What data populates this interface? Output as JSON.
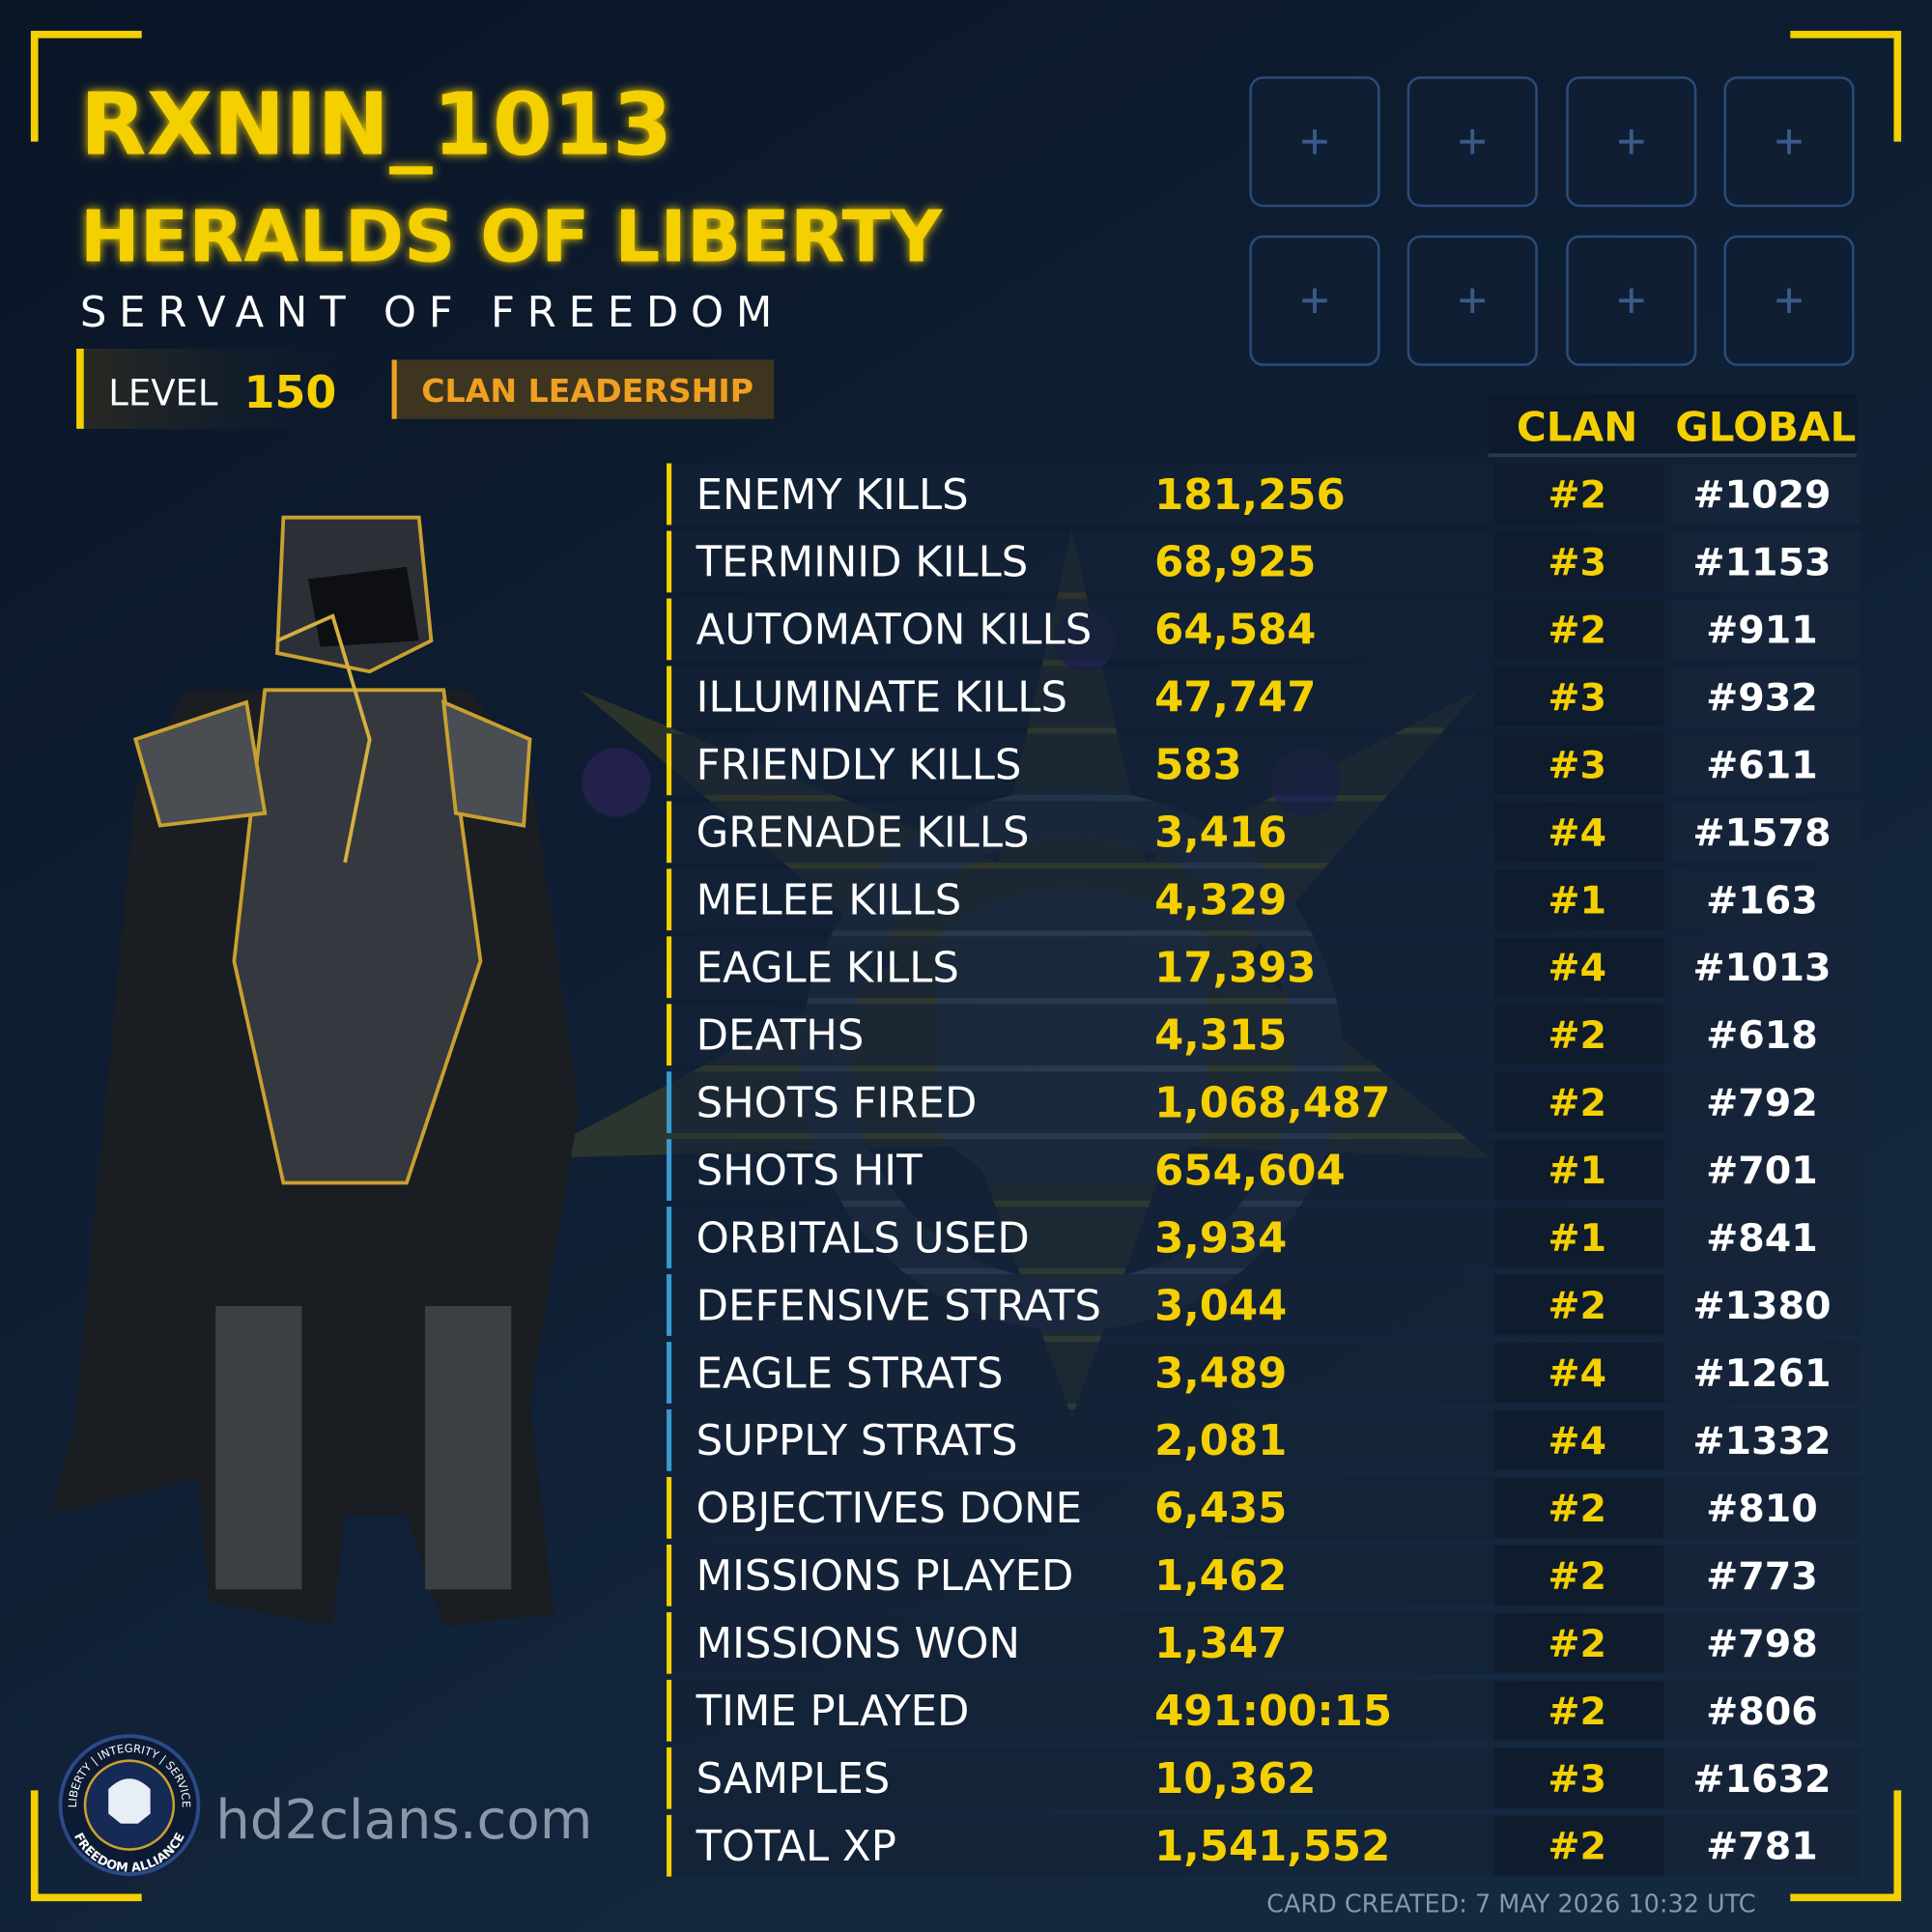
{
  "header": {
    "name": "RXNIN_1013",
    "clan": "HERALDS OF LIBERTY",
    "subtitle": "SERVANT OF FREEDOM",
    "level_label": "LEVEL",
    "level": "150",
    "role": "CLAN LEADERSHIP"
  },
  "table": {
    "headers": [
      "CLAN",
      "GLOBAL"
    ],
    "rows": [
      {
        "label": "ENEMY KILLS",
        "value": "181,256",
        "clan": "#2",
        "global": "#1029",
        "color": "#f5d000"
      },
      {
        "label": "TERMINID KILLS",
        "value": "68,925",
        "clan": "#3",
        "global": "#1153",
        "color": "#f5d000"
      },
      {
        "label": "AUTOMATON KILLS",
        "value": "64,584",
        "clan": "#2",
        "global": "#911",
        "color": "#f5d000"
      },
      {
        "label": "ILLUMINATE KILLS",
        "value": "47,747",
        "clan": "#3",
        "global": "#932",
        "color": "#f5d000"
      },
      {
        "label": "FRIENDLY KILLS",
        "value": "583",
        "clan": "#3",
        "global": "#611",
        "color": "#f5d000"
      },
      {
        "label": "GRENADE KILLS",
        "value": "3,416",
        "clan": "#4",
        "global": "#1578",
        "color": "#f5d000"
      },
      {
        "label": "MELEE KILLS",
        "value": "4,329",
        "clan": "#1",
        "global": "#163",
        "color": "#f5d000"
      },
      {
        "label": "EAGLE KILLS",
        "value": "17,393",
        "clan": "#4",
        "global": "#1013",
        "color": "#f5d000"
      },
      {
        "label": "DEATHS",
        "value": "4,315",
        "clan": "#2",
        "global": "#618",
        "color": "#f5d000"
      },
      {
        "label": "SHOTS FIRED",
        "value": "1,068,487",
        "clan": "#2",
        "global": "#792",
        "color": "#3a9ad0"
      },
      {
        "label": "SHOTS HIT",
        "value": "654,604",
        "clan": "#1",
        "global": "#701",
        "color": "#3a9ad0"
      },
      {
        "label": "ORBITALS USED",
        "value": "3,934",
        "clan": "#1",
        "global": "#841",
        "color": "#3a9ad0"
      },
      {
        "label": "DEFENSIVE STRATS",
        "value": "3,044",
        "clan": "#2",
        "global": "#1380",
        "color": "#3a9ad0"
      },
      {
        "label": "EAGLE STRATS",
        "value": "3,489",
        "clan": "#4",
        "global": "#1261",
        "color": "#3a9ad0"
      },
      {
        "label": "SUPPLY STRATS",
        "value": "2,081",
        "clan": "#4",
        "global": "#1332",
        "color": "#3a9ad0"
      },
      {
        "label": "OBJECTIVES DONE",
        "value": "6,435",
        "clan": "#2",
        "global": "#810",
        "color": "#f5d000"
      },
      {
        "label": "MISSIONS PLAYED",
        "value": "1,462",
        "clan": "#2",
        "global": "#773",
        "color": "#f5d000"
      },
      {
        "label": "MISSIONS WON",
        "value": "1,347",
        "clan": "#2",
        "global": "#798",
        "color": "#f5d000"
      },
      {
        "label": "TIME PLAYED",
        "value": "491:00:15",
        "clan": "#2",
        "global": "#806",
        "color": "#f5d000"
      },
      {
        "label": "SAMPLES",
        "value": "10,362",
        "clan": "#3",
        "global": "#1632",
        "color": "#f5d000"
      },
      {
        "label": "TOTAL XP",
        "value": "1,541,552",
        "clan": "#2",
        "global": "#781",
        "color": "#f5d000"
      }
    ]
  },
  "logo": {
    "top": "LIBERTY | INTEGRITY | SERVICE",
    "bottom": "FREEDOM ALLIANCE"
  },
  "footer": {
    "site": "hd2clans.com",
    "created": "CARD CREATED: 7 MAY 2026 10:32 UTC"
  }
}
